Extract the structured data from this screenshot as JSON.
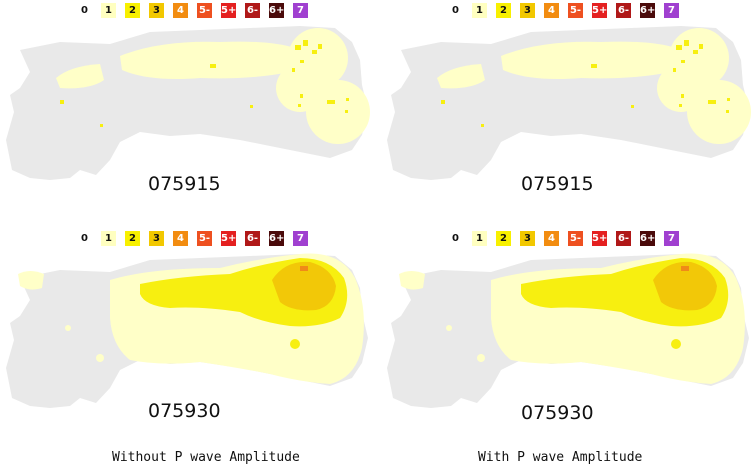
{
  "legend": {
    "items": [
      {
        "label": "0",
        "color": "#e6e6e6",
        "text": "#111111"
      },
      {
        "label": "1",
        "color": "#ffffc0",
        "text": "#111111"
      },
      {
        "label": "2",
        "color": "#f8f000",
        "text": "#111111"
      },
      {
        "label": "3",
        "color": "#f2c800",
        "text": "#111111"
      },
      {
        "label": "4",
        "color": "#f28c10",
        "text": "#ffffff"
      },
      {
        "label": "5-",
        "color": "#ee5020",
        "text": "#ffffff"
      },
      {
        "label": "5+",
        "color": "#e42020",
        "text": "#ffffff"
      },
      {
        "label": "6-",
        "color": "#b01818",
        "text": "#ffffff"
      },
      {
        "label": "6+",
        "color": "#4a0a0a",
        "text": "#ffffff"
      },
      {
        "label": "7",
        "color": "#a040d0",
        "text": "#ffffff"
      }
    ]
  },
  "panels": [
    {
      "id": "top-left",
      "timestamp": "075915",
      "scenario": "early",
      "variant": "without"
    },
    {
      "id": "top-right",
      "timestamp": "075915",
      "scenario": "early",
      "variant": "with"
    },
    {
      "id": "bottom-left",
      "timestamp": "075930",
      "scenario": "late",
      "variant": "without"
    },
    {
      "id": "bottom-right",
      "timestamp": "075930",
      "scenario": "late",
      "variant": "with"
    }
  ],
  "captions": {
    "left": "Without P wave Amplitude",
    "right": "With P wave Amplitude"
  },
  "colors": {
    "land": "#e9e9e9",
    "intensity_1": "#ffffc8",
    "intensity_2": "#f7ef10",
    "intensity_3": "#f2c808",
    "intensity_4": "#f08a18"
  }
}
